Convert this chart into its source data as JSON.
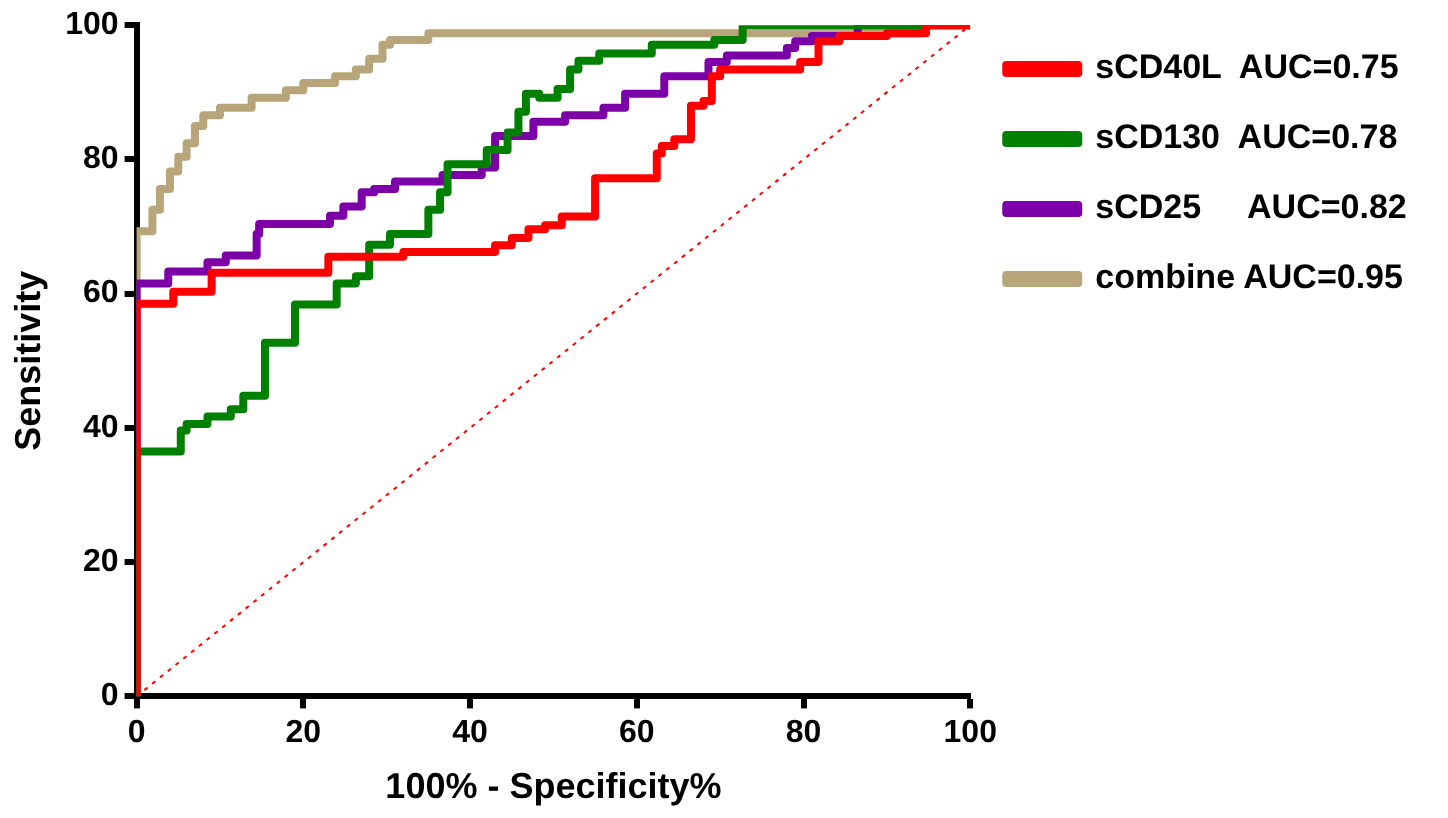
{
  "chart_data": {
    "type": "step",
    "xlabel": "100% - Specificity%",
    "ylabel": "Sensitivity",
    "xlim": [
      0,
      100
    ],
    "ylim": [
      0,
      100
    ],
    "xticks": [
      0,
      20,
      40,
      60,
      80,
      100
    ],
    "yticks": [
      0,
      20,
      40,
      60,
      80,
      100
    ],
    "grid": false,
    "legend": "right",
    "marker": "none",
    "line_style": "solid",
    "series": [
      {
        "name": "sCD40L  AUC=0.75",
        "color": "#ff0000",
        "x": [
          0,
          0,
          4.4,
          9,
          23,
          32,
          43,
          45,
          47,
          49,
          51,
          55,
          62.4,
          63,
          64.5,
          66.5,
          68,
          69,
          70,
          79.6,
          81.8,
          84.3,
          90,
          94.7,
          100
        ],
        "values": [
          0,
          57.4,
          58.5,
          60.3,
          63.1,
          65.5,
          66.2,
          67.2,
          68.3,
          69.6,
          70.2,
          71.5,
          77.2,
          80.9,
          82,
          83,
          88,
          88.7,
          92.4,
          93.4,
          94.5,
          97.6,
          98.4,
          98.8,
          100
        ]
      },
      {
        "name": "sCD130  AUC=0.78",
        "color": "#008000",
        "x": [
          0,
          0,
          5.3,
          6,
          8.5,
          11.3,
          12.8,
          15.4,
          19,
          24,
          26.3,
          27.9,
          30.4,
          35,
          36.4,
          37.3,
          42,
          44.5,
          45.8,
          46.7,
          48.3,
          50.5,
          52,
          53,
          55.5,
          61.8,
          69.3,
          72.7,
          95
        ],
        "values": [
          0,
          34.6,
          36.5,
          39.6,
          40.6,
          41.7,
          42.8,
          44.8,
          52.7,
          58.4,
          61.5,
          62.6,
          67.3,
          68.9,
          72.5,
          75.1,
          79.3,
          81.4,
          84,
          87.1,
          89.8,
          89.2,
          90.5,
          93.4,
          94.7,
          95.8,
          97.1,
          97.8,
          100
        ]
      },
      {
        "name": "sCD25     AUC=0.82",
        "color": "#7b00a8",
        "x": [
          0,
          0,
          3.8,
          8.5,
          10.7,
          14.4,
          14.7,
          23.2,
          24.8,
          27,
          28.5,
          31,
          36.7,
          41.4,
          43,
          47.6,
          51.4,
          56,
          58.6,
          63.3,
          68.6,
          70.8,
          78,
          79,
          81,
          86.5,
          95.3,
          100
        ],
        "values": [
          0,
          60.5,
          61.5,
          63.3,
          64.7,
          65.7,
          68.9,
          70.4,
          71.6,
          73,
          75.1,
          75.6,
          76.7,
          77.7,
          78.8,
          83.5,
          85.6,
          86.6,
          87.7,
          89.8,
          92.4,
          94.5,
          95.5,
          96.6,
          97.6,
          98.4,
          100,
          100
        ]
      },
      {
        "name": "combine AUC=0.95",
        "color": "#b8a67a",
        "x": [
          0,
          0,
          1.9,
          2.8,
          4,
          5,
          6,
          7,
          8,
          10,
          13.8,
          17.9,
          20,
          23.8,
          26.3,
          27.9,
          29.5,
          30.4,
          35,
          94,
          100
        ],
        "values": [
          0,
          63.1,
          69.3,
          72.5,
          75.6,
          78.2,
          80.4,
          82.4,
          85,
          86.6,
          87.7,
          89.2,
          90.3,
          91.4,
          92.4,
          93.4,
          95,
          97.1,
          97.8,
          98.8,
          100
        ]
      },
      {
        "type": "line",
        "color": "#ff0000",
        "line_style": "dotted",
        "x": [
          0,
          100
        ],
        "values": [
          0,
          100
        ]
      }
    ]
  }
}
